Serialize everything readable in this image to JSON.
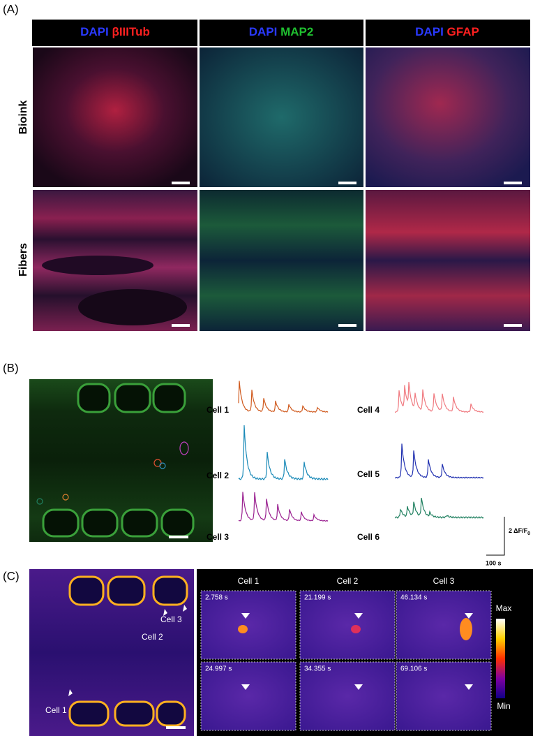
{
  "panel_a": {
    "label": "(A)",
    "columns": [
      {
        "stain1": "DAPI",
        "stain2": "βIIITub"
      },
      {
        "stain1": "DAPI",
        "stain2": "MAP2"
      },
      {
        "stain1": "DAPI",
        "stain2": "GFAP"
      }
    ],
    "rows": [
      "Bioink",
      "Fibers"
    ]
  },
  "panel_b": {
    "label": "(B)",
    "cells": [
      "Cell 1",
      "Cell 2",
      "Cell 3",
      "Cell 4",
      "Cell 5",
      "Cell 6"
    ],
    "scale_bar": {
      "y": "2 ΔF/F",
      "y_sub": "0",
      "x": "100 s"
    }
  },
  "panel_c": {
    "label": "(C)",
    "overlay_cells": [
      "Cell 3",
      "Cell 2",
      "Cell 1"
    ],
    "columns": [
      "Cell 1",
      "Cell 2",
      "Cell 3"
    ],
    "timestamps": [
      [
        "2.758 s",
        "21.199 s",
        "46.134 s"
      ],
      [
        "24.997 s",
        "34.355 s",
        "69.106 s"
      ]
    ],
    "colorbar": {
      "max": "Max",
      "min": "Min"
    }
  }
}
